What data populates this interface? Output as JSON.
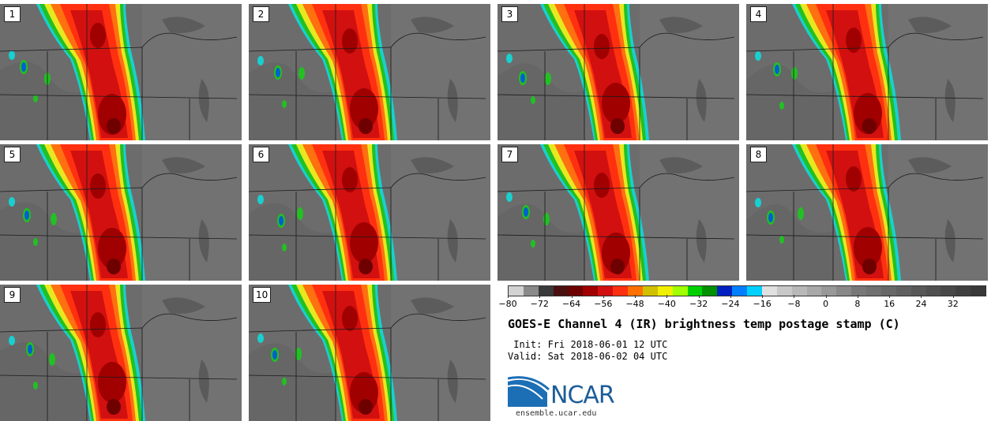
{
  "panels": [
    {
      "label": "1"
    },
    {
      "label": "2"
    },
    {
      "label": "3"
    },
    {
      "label": "4"
    },
    {
      "label": "5"
    },
    {
      "label": "6"
    },
    {
      "label": "7"
    },
    {
      "label": "8"
    },
    {
      "label": "9"
    },
    {
      "label": "10"
    }
  ],
  "colorbar": {
    "colors": [
      "#d2d2d2",
      "#8a8a8a",
      "#3a3a3a",
      "#4a1010",
      "#6e0000",
      "#a00000",
      "#d21010",
      "#ff3010",
      "#ff7000",
      "#d0c000",
      "#f0f000",
      "#a0ff00",
      "#00d000",
      "#009000",
      "#0020c0",
      "#0080ff",
      "#00d0ff",
      "#e0e0e0",
      "#c8c8c8",
      "#b8b8b8",
      "#a8a8a8",
      "#989898",
      "#888888",
      "#787878",
      "#707070",
      "#686868",
      "#606060",
      "#585858",
      "#505050",
      "#484848",
      "#404040",
      "#383838"
    ],
    "ticks": [
      "−80",
      "−72",
      "−64",
      "−56",
      "−48",
      "−40",
      "−32",
      "−24",
      "−16",
      "−8",
      "0",
      "8",
      "16",
      "24",
      "32"
    ],
    "min": -80,
    "max": 40
  },
  "title": "GOES-E Channel 4 (IR) brightness temp postage stamp (C)",
  "init": " Init: Fri 2018-06-01 12 UTC",
  "valid": "Valid: Sat 2018-06-02 04 UTC",
  "logo": {
    "name": "NCAR",
    "url": "ensemble.ucar.edu"
  }
}
